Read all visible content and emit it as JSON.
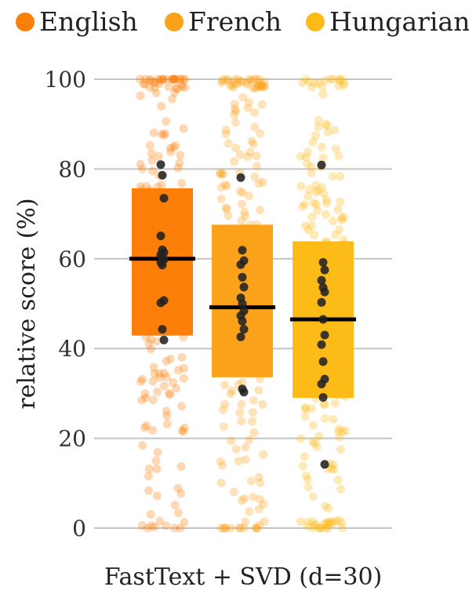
{
  "chart_data": {
    "type": "box-strip",
    "title": "",
    "xlabel": "FastText + SVD (d=30)",
    "ylabel": "relative score (%)",
    "ylim": [
      0,
      100
    ],
    "yticks": [
      0,
      20,
      40,
      60,
      80,
      100
    ],
    "grid": "horizontal",
    "legend_position": "top",
    "series": [
      {
        "name": "English",
        "color": "#fb7f09",
        "box": {
          "q1": 42.9,
          "median": 60.0,
          "q3": 75.7
        },
        "highlighted_points": [
          81.0,
          78.6,
          73.5,
          65.1,
          62.0,
          61.4,
          60.9,
          60.3,
          59.8,
          59.2,
          58.6,
          50.7,
          50.2,
          44.3,
          41.9
        ]
      },
      {
        "name": "French",
        "color": "#fca21a",
        "box": {
          "q1": 33.6,
          "median": 49.2,
          "q3": 67.6
        },
        "highlighted_points": [
          78.1,
          61.9,
          59.6,
          58.7,
          55.9,
          53.7,
          51.3,
          50.0,
          48.4,
          47.3,
          46.1,
          44.3,
          42.6,
          31.0,
          30.3
        ]
      },
      {
        "name": "Hungarian",
        "color": "#fdbb18",
        "box": {
          "q1": 29.0,
          "median": 46.5,
          "q3": 63.9
        },
        "highlighted_points": [
          80.9,
          59.2,
          57.5,
          55.2,
          53.6,
          52.6,
          50.3,
          46.5,
          43.0,
          40.9,
          37.1,
          33.2,
          32.1,
          29.1,
          14.2
        ]
      }
    ]
  }
}
